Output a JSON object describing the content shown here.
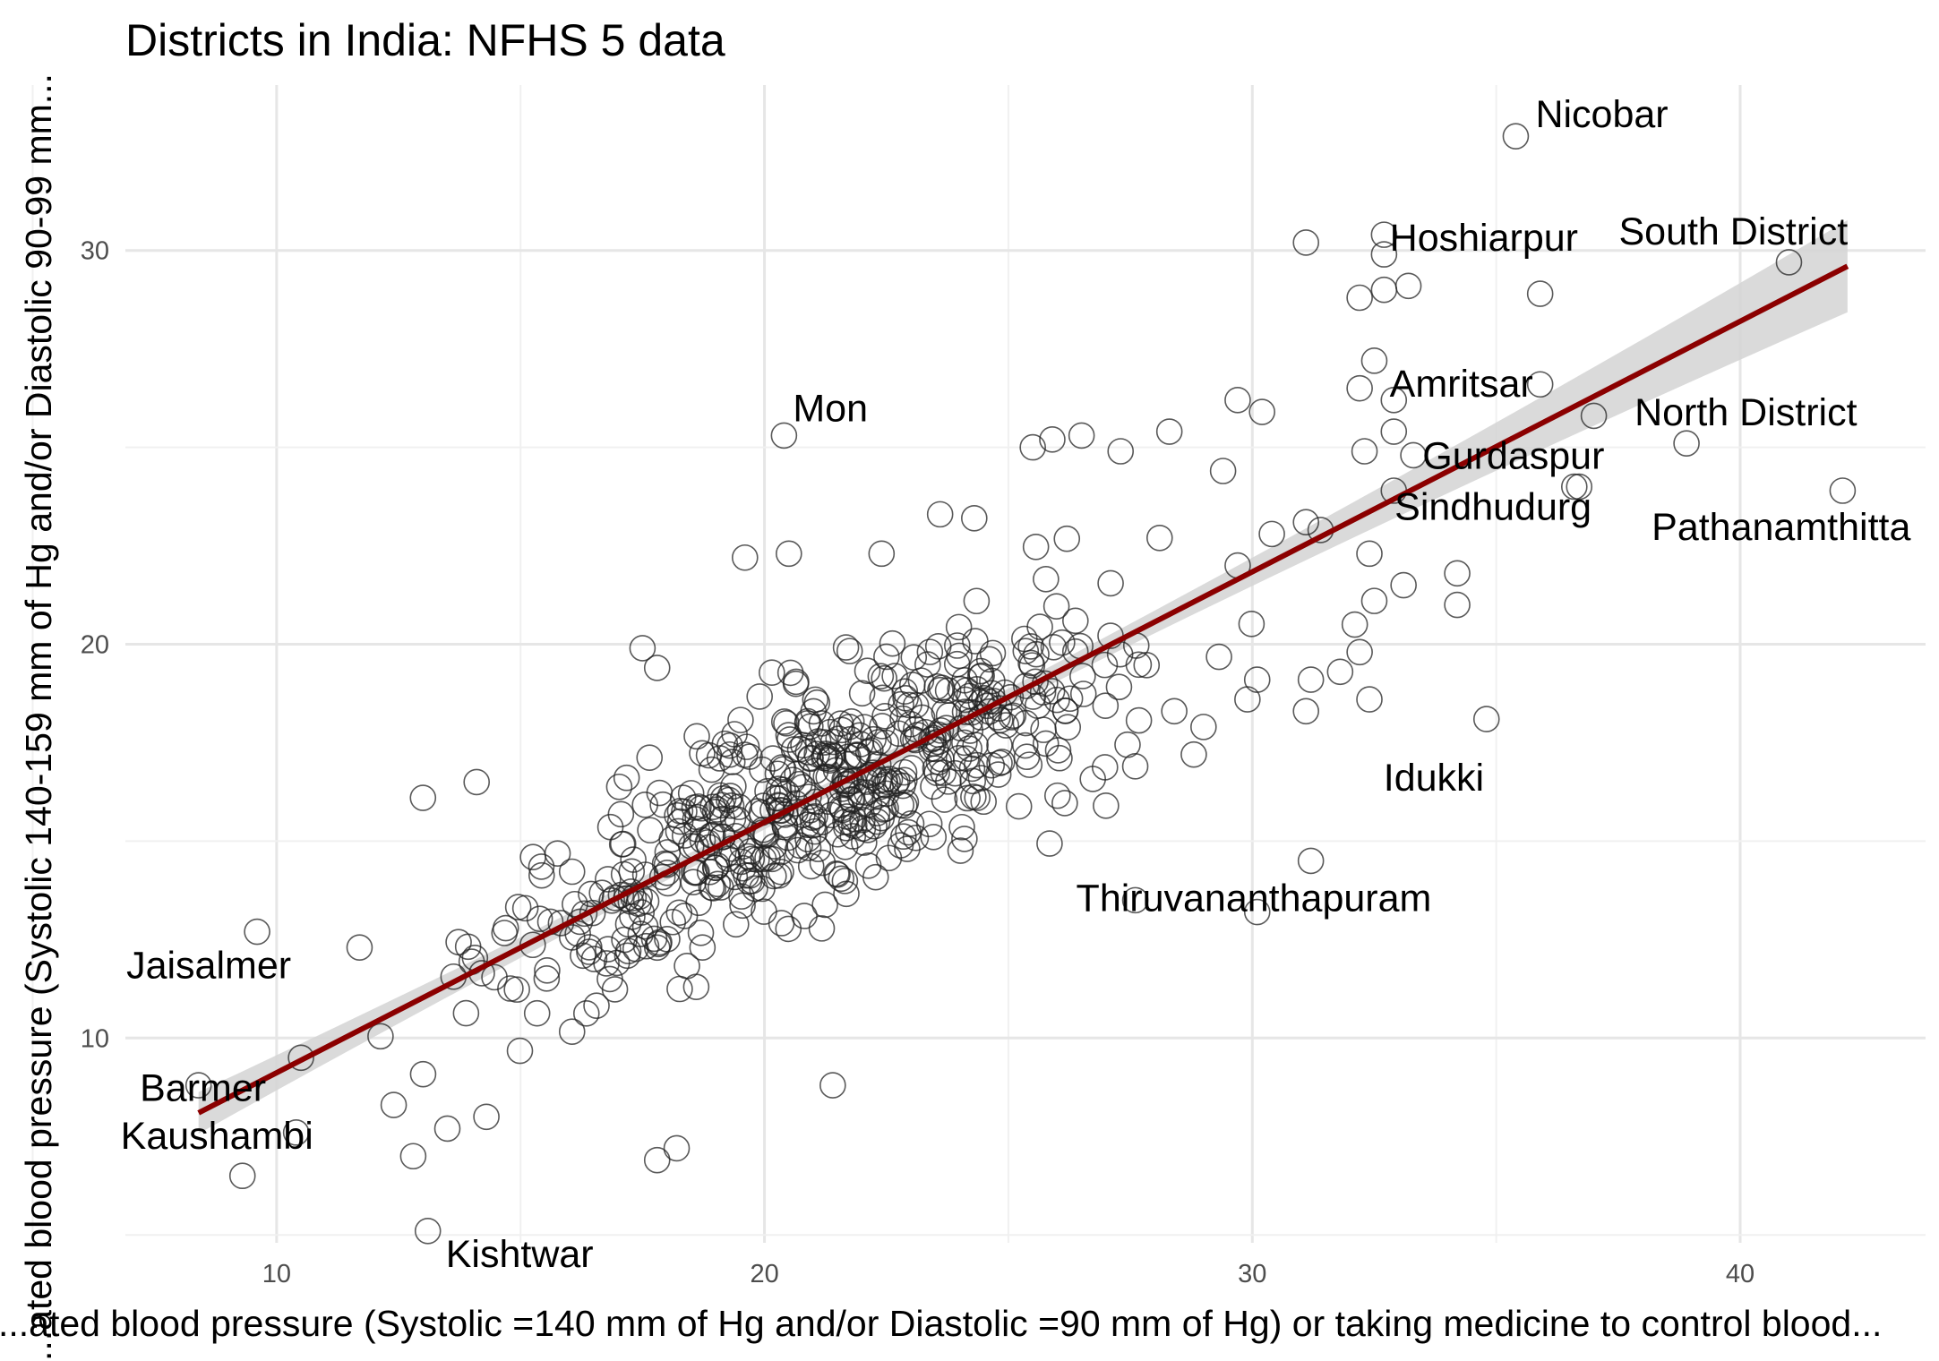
{
  "chart_data": {
    "type": "scatter",
    "title": "Districts in India: NFHS 5 data",
    "xlabel": "...ated blood pressure (Systolic =140 mm of Hg and/or Diastolic =90 mm of Hg) or taking medicine to control blood...",
    "ylabel": "...ated blood pressure (Systolic 140-159 mm of Hg and/or Diastolic 90-99 mm...",
    "xlim": [
      6.9,
      43.8
    ],
    "ylim": [
      4.8,
      34.2
    ],
    "x_ticks": [
      10,
      20,
      30,
      40
    ],
    "y_ticks": [
      10,
      20,
      30
    ],
    "grid": true,
    "trend_line": {
      "color": "#8b0000",
      "x": [
        8.4,
        42.2
      ],
      "y": [
        8.1,
        29.6
      ],
      "ci_band": true
    },
    "labeled_points": [
      {
        "label": "Nicobar",
        "x": 35.4,
        "y": 32.9
      },
      {
        "label": "South District",
        "x": 41.0,
        "y": 29.7
      },
      {
        "label": "Hoshiarpur",
        "x": 35.9,
        "y": 28.9
      },
      {
        "label": "Amritsar",
        "x": 35.9,
        "y": 26.6
      },
      {
        "label": "North  District",
        "x": 38.9,
        "y": 25.1
      },
      {
        "label": "Mon",
        "x": 20.4,
        "y": 25.3
      },
      {
        "label": "Gurdaspur",
        "x": 36.7,
        "y": 24.0
      },
      {
        "label": "Sindhudurg",
        "x": 33.1,
        "y": 24.8
      },
      {
        "label": "Pathanamthitta",
        "x": 42.1,
        "y": 23.9
      },
      {
        "label": "Idukki",
        "x": 34.8,
        "y": 18.1
      },
      {
        "label": "Thiruvananthapuram",
        "x": 27.6,
        "y": 13.5
      },
      {
        "label": "Jaisalmer",
        "x": 9.6,
        "y": 12.7
      },
      {
        "label": "Barmer",
        "x": 10.5,
        "y": 9.5
      },
      {
        "label": "Kaushambi",
        "x": 10.4,
        "y": 7.6
      },
      {
        "label": "Kishtwar",
        "x": 13.1,
        "y": 5.1
      }
    ],
    "points": [
      [
        35.4,
        32.9
      ],
      [
        41.0,
        29.7
      ],
      [
        35.9,
        28.9
      ],
      [
        35.9,
        26.6
      ],
      [
        38.9,
        25.1
      ],
      [
        20.4,
        25.3
      ],
      [
        36.7,
        24.0
      ],
      [
        42.1,
        23.9
      ],
      [
        34.8,
        18.1
      ],
      [
        27.6,
        13.5
      ],
      [
        9.6,
        12.7
      ],
      [
        8.4,
        8.8
      ],
      [
        10.5,
        9.5
      ],
      [
        10.4,
        7.6
      ],
      [
        9.3,
        6.5
      ],
      [
        13.1,
        5.1
      ],
      [
        31.1,
        30.2
      ],
      [
        32.7,
        30.4
      ],
      [
        32.7,
        29.9
      ],
      [
        33.2,
        29.1
      ],
      [
        32.7,
        29.0
      ],
      [
        32.2,
        28.8
      ],
      [
        32.5,
        27.2
      ],
      [
        32.2,
        26.5
      ],
      [
        32.9,
        26.2
      ],
      [
        32.9,
        25.4
      ],
      [
        32.3,
        24.9
      ],
      [
        33.3,
        24.8
      ],
      [
        32.9,
        23.9
      ],
      [
        36.6,
        24.0
      ],
      [
        37.0,
        25.8
      ],
      [
        29.7,
        26.2
      ],
      [
        30.2,
        25.9
      ],
      [
        28.3,
        25.4
      ],
      [
        26.5,
        25.3
      ],
      [
        25.5,
        25.0
      ],
      [
        25.9,
        25.2
      ],
      [
        27.3,
        24.9
      ],
      [
        29.4,
        24.4
      ],
      [
        32.4,
        22.3
      ],
      [
        33.1,
        21.5
      ],
      [
        31.1,
        23.1
      ],
      [
        31.4,
        22.9
      ],
      [
        30.4,
        22.8
      ],
      [
        29.7,
        22.0
      ],
      [
        28.1,
        22.7
      ],
      [
        23.6,
        23.3
      ],
      [
        24.3,
        23.2
      ],
      [
        22.4,
        22.3
      ],
      [
        20.5,
        22.3
      ],
      [
        19.6,
        22.2
      ],
      [
        34.2,
        21.8
      ],
      [
        32.5,
        21.1
      ],
      [
        34.2,
        21.0
      ],
      [
        32.1,
        20.5
      ],
      [
        32.2,
        19.8
      ],
      [
        30.1,
        19.1
      ],
      [
        31.2,
        19.1
      ],
      [
        32.4,
        18.6
      ],
      [
        31.1,
        18.3
      ],
      [
        31.8,
        19.3
      ],
      [
        29.0,
        17.9
      ],
      [
        28.4,
        18.3
      ],
      [
        28.8,
        17.2
      ],
      [
        17.5,
        19.9
      ],
      [
        17.8,
        19.4
      ],
      [
        30.1,
        13.2
      ],
      [
        31.2,
        14.5
      ],
      [
        27.6,
        16.9
      ],
      [
        29.9,
        18.6
      ],
      [
        27.0,
        15.9
      ],
      [
        21.4,
        8.8
      ],
      [
        18.2,
        7.2
      ],
      [
        17.8,
        6.9
      ],
      [
        12.4,
        8.3
      ],
      [
        12.8,
        7.0
      ],
      [
        13.5,
        7.7
      ],
      [
        14.3,
        8.0
      ],
      [
        11.7,
        12.3
      ],
      [
        13.0,
        16.1
      ],
      [
        14.1,
        16.5
      ]
    ]
  }
}
